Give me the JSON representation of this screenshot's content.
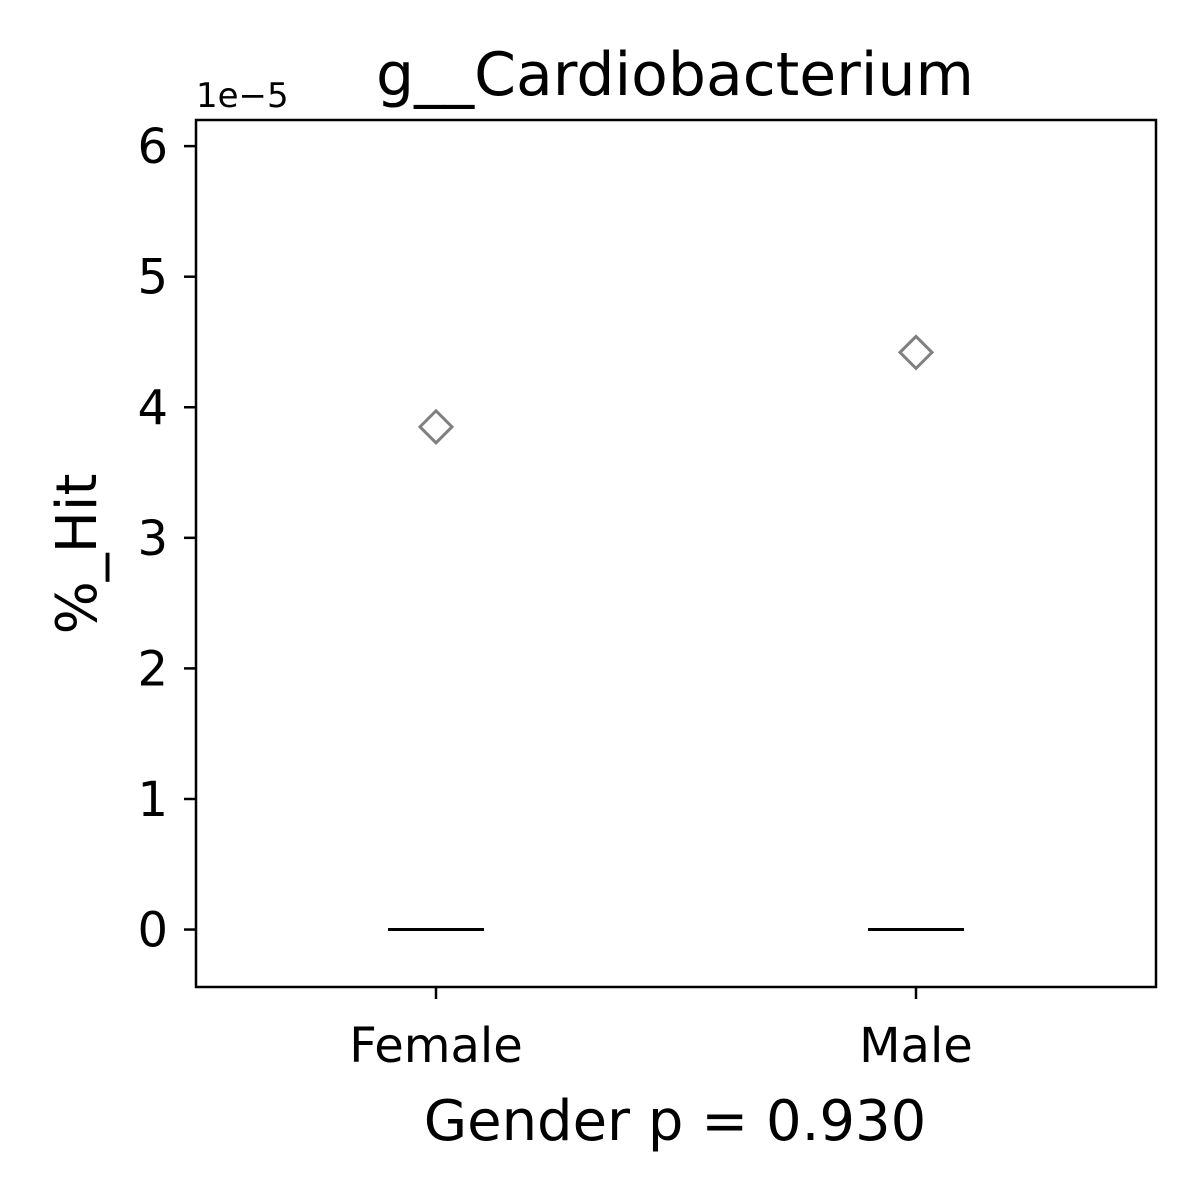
{
  "chart_data": {
    "type": "box",
    "title": "g__Cardiobacterium",
    "xlabel": "Gender p = 0.930",
    "ylabel": "%_Hit",
    "y_offset_label": "1e−5",
    "y_scale": 1e-05,
    "categories": [
      "Female",
      "Male"
    ],
    "ylim": [
      -4.4e-06,
      6.2e-05
    ],
    "yticks": [
      0,
      1e-05,
      2e-05,
      3e-05,
      4e-05,
      5e-05,
      6e-05
    ],
    "ytick_labels": [
      "0",
      "1",
      "2",
      "3",
      "4",
      "5",
      "6"
    ],
    "grid": false,
    "legend": "none",
    "boxes": [
      {
        "category": "Female",
        "median": 0,
        "q1": 0,
        "q3": 0,
        "whisker_low": 0,
        "whisker_high": 0,
        "outliers": [
          3.85e-05
        ]
      },
      {
        "category": "Male",
        "median": 0,
        "q1": 0,
        "q3": 0,
        "whisker_low": 0,
        "whisker_high": 0,
        "outliers": [
          4.42e-05
        ]
      }
    ],
    "colors": {
      "median": "#000000",
      "outlier": "#808080",
      "axes": "#000000"
    }
  }
}
